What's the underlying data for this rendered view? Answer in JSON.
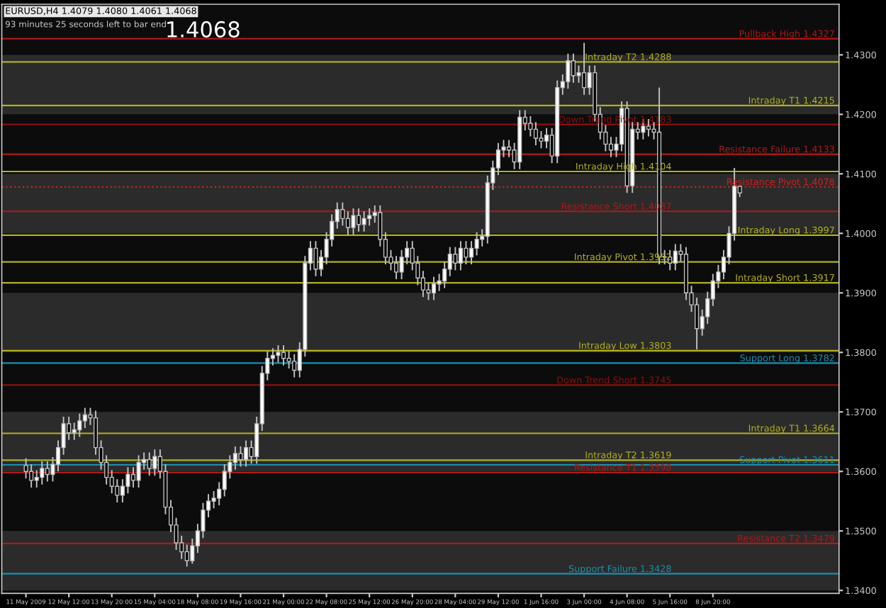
{
  "chart_data": {
    "type": "candlestick",
    "categories": [
      "11 May 2009",
      null,
      null,
      null,
      null,
      null,
      null,
      null,
      "12 May 12:00",
      null,
      null,
      null,
      null,
      null,
      null,
      null,
      "13 May 20:00",
      null,
      null,
      null,
      null,
      null,
      null,
      null,
      "15 May 04:00",
      null,
      null,
      null,
      null,
      null,
      null,
      null,
      "18 May 08:00",
      null,
      null,
      null,
      null,
      null,
      null,
      null,
      "19 May 16:00",
      null,
      null,
      null,
      null,
      null,
      null,
      null,
      "21 May 00:00",
      null,
      null,
      null,
      null,
      null,
      null,
      null,
      "22 May 08:00",
      null,
      null,
      null,
      null,
      null,
      null,
      null,
      "25 May 12:00",
      null,
      null,
      null,
      null,
      null,
      null,
      null,
      "26 May 20:00",
      null,
      null,
      null,
      null,
      null,
      null,
      null,
      "28 May 04:00",
      null,
      null,
      null,
      null,
      null,
      null,
      null,
      "29 May 12:00",
      null,
      null,
      null,
      null,
      null,
      null,
      null,
      "1 Jun 16:00",
      null,
      null,
      null,
      null,
      null,
      null,
      null,
      "3 Jun 00:00",
      null,
      null,
      null,
      null,
      null,
      null,
      null,
      "4 Jun 08:00",
      null,
      null,
      null,
      null,
      null,
      null,
      null,
      "5 Jun 16:00",
      null,
      null,
      null,
      null,
      null,
      null,
      null,
      "8 Jun 20:00",
      null,
      null,
      null,
      null,
      null,
      null,
      null,
      null,
      null,
      null,
      null,
      null,
      null,
      null,
      null,
      null,
      null,
      null,
      null,
      null,
      null,
      null,
      null
    ],
    "ohlc": [
      [
        1.361,
        1.3622,
        1.3588,
        1.36
      ],
      [
        1.36,
        1.3612,
        1.3573,
        1.3585
      ],
      [
        1.3585,
        1.3602,
        1.3573,
        1.359
      ],
      [
        1.359,
        1.3617,
        1.3578,
        1.3605
      ],
      [
        1.3605,
        1.3617,
        1.3583,
        1.3595
      ],
      [
        1.3595,
        1.3624,
        1.3583,
        1.3612
      ],
      [
        1.3612,
        1.3652,
        1.36,
        1.364
      ],
      [
        1.364,
        1.3692,
        1.3628,
        1.368
      ],
      [
        1.368,
        1.3692,
        1.3653,
        1.3665
      ],
      [
        1.3665,
        1.3682,
        1.3653,
        1.367
      ],
      [
        1.367,
        1.3697,
        1.3658,
        1.3685
      ],
      [
        1.3685,
        1.3707,
        1.3673,
        1.3695
      ],
      [
        1.3695,
        1.3707,
        1.3678,
        1.369
      ],
      [
        1.369,
        1.3702,
        1.3628,
        1.364
      ],
      [
        1.364,
        1.3652,
        1.3603,
        1.3615
      ],
      [
        1.3615,
        1.3627,
        1.3578,
        1.359
      ],
      [
        1.359,
        1.3602,
        1.3563,
        1.3575
      ],
      [
        1.3575,
        1.3587,
        1.3548,
        1.356
      ],
      [
        1.356,
        1.3587,
        1.3548,
        1.3575
      ],
      [
        1.3575,
        1.3607,
        1.3563,
        1.3595
      ],
      [
        1.3595,
        1.3607,
        1.3573,
        1.3585
      ],
      [
        1.3585,
        1.3627,
        1.3573,
        1.3615
      ],
      [
        1.3615,
        1.3632,
        1.3603,
        1.362
      ],
      [
        1.362,
        1.3632,
        1.3593,
        1.3605
      ],
      [
        1.3605,
        1.3637,
        1.3593,
        1.3625
      ],
      [
        1.3625,
        1.3637,
        1.3588,
        1.36
      ],
      [
        1.36,
        1.3612,
        1.3528,
        1.354
      ],
      [
        1.354,
        1.3552,
        1.3498,
        1.351
      ],
      [
        1.351,
        1.3522,
        1.3468,
        1.348
      ],
      [
        1.348,
        1.3492,
        1.3453,
        1.3465
      ],
      [
        1.3465,
        1.3477,
        1.344,
        1.345
      ],
      [
        1.345,
        1.3487,
        1.3445,
        1.3475
      ],
      [
        1.3475,
        1.3512,
        1.3463,
        1.35
      ],
      [
        1.35,
        1.3547,
        1.3488,
        1.3535
      ],
      [
        1.3535,
        1.3562,
        1.3523,
        1.355
      ],
      [
        1.355,
        1.3567,
        1.3538,
        1.3555
      ],
      [
        1.3555,
        1.3582,
        1.3543,
        1.357
      ],
      [
        1.357,
        1.3612,
        1.3558,
        1.36
      ],
      [
        1.36,
        1.3627,
        1.3588,
        1.3615
      ],
      [
        1.3615,
        1.3642,
        1.3603,
        1.363
      ],
      [
        1.363,
        1.3642,
        1.3608,
        1.362
      ],
      [
        1.362,
        1.3652,
        1.3608,
        1.364
      ],
      [
        1.364,
        1.3652,
        1.3613,
        1.3625
      ],
      [
        1.3625,
        1.3692,
        1.3613,
        1.368
      ],
      [
        1.368,
        1.3777,
        1.3668,
        1.3765
      ],
      [
        1.3765,
        1.3802,
        1.3753,
        1.379
      ],
      [
        1.379,
        1.3807,
        1.3778,
        1.3795
      ],
      [
        1.3795,
        1.3812,
        1.3783,
        1.38
      ],
      [
        1.38,
        1.3812,
        1.3778,
        1.379
      ],
      [
        1.379,
        1.3802,
        1.3773,
        1.3785
      ],
      [
        1.3785,
        1.3797,
        1.3758,
        1.377
      ],
      [
        1.377,
        1.3817,
        1.3758,
        1.3805
      ],
      [
        1.3805,
        1.3962,
        1.3793,
        1.395
      ],
      [
        1.395,
        1.3987,
        1.3938,
        1.3975
      ],
      [
        1.3975,
        1.3987,
        1.3928,
        1.394
      ],
      [
        1.394,
        1.3972,
        1.3928,
        1.396
      ],
      [
        1.396,
        1.4002,
        1.3948,
        1.399
      ],
      [
        1.399,
        1.4032,
        1.3978,
        1.402
      ],
      [
        1.402,
        1.4052,
        1.4008,
        1.404
      ],
      [
        1.404,
        1.4052,
        1.4013,
        1.4025
      ],
      [
        1.4025,
        1.4037,
        1.3998,
        1.401
      ],
      [
        1.401,
        1.4042,
        1.3998,
        1.403
      ],
      [
        1.403,
        1.4042,
        1.4003,
        1.4015
      ],
      [
        1.4015,
        1.4037,
        1.4003,
        1.4025
      ],
      [
        1.4025,
        1.4042,
        1.4013,
        1.403
      ],
      [
        1.403,
        1.4047,
        1.4018,
        1.4035
      ],
      [
        1.4035,
        1.4047,
        1.3978,
        1.399
      ],
      [
        1.399,
        1.4002,
        1.3948,
        1.396
      ],
      [
        1.396,
        1.3972,
        1.3938,
        1.395
      ],
      [
        1.395,
        1.3962,
        1.3923,
        1.3935
      ],
      [
        1.3935,
        1.3972,
        1.3923,
        1.396
      ],
      [
        1.396,
        1.3987,
        1.3948,
        1.3975
      ],
      [
        1.3975,
        1.3987,
        1.3938,
        1.395
      ],
      [
        1.395,
        1.3962,
        1.3913,
        1.3925
      ],
      [
        1.3925,
        1.3937,
        1.3893,
        1.3905
      ],
      [
        1.3905,
        1.3917,
        1.3888,
        1.39
      ],
      [
        1.39,
        1.3927,
        1.3888,
        1.3915
      ],
      [
        1.3915,
        1.3932,
        1.3903,
        1.392
      ],
      [
        1.392,
        1.3952,
        1.3908,
        1.394
      ],
      [
        1.394,
        1.3977,
        1.3928,
        1.3965
      ],
      [
        1.3965,
        1.3977,
        1.3938,
        1.395
      ],
      [
        1.395,
        1.3987,
        1.3938,
        1.3975
      ],
      [
        1.3975,
        1.3987,
        1.3948,
        1.396
      ],
      [
        1.396,
        1.3987,
        1.3948,
        1.3975
      ],
      [
        1.3975,
        1.4002,
        1.3963,
        1.399
      ],
      [
        1.399,
        1.4007,
        1.3978,
        1.3995
      ],
      [
        1.3995,
        1.4097,
        1.3983,
        1.4085
      ],
      [
        1.4085,
        1.4122,
        1.4073,
        1.411
      ],
      [
        1.411,
        1.4152,
        1.4098,
        1.414
      ],
      [
        1.414,
        1.4157,
        1.4128,
        1.4145
      ],
      [
        1.4145,
        1.4157,
        1.4128,
        1.414
      ],
      [
        1.414,
        1.4152,
        1.4108,
        1.412
      ],
      [
        1.412,
        1.4207,
        1.4108,
        1.4195
      ],
      [
        1.4195,
        1.4207,
        1.4173,
        1.4185
      ],
      [
        1.4185,
        1.4197,
        1.4163,
        1.4175
      ],
      [
        1.4175,
        1.4187,
        1.4148,
        1.416
      ],
      [
        1.416,
        1.4172,
        1.4143,
        1.4155
      ],
      [
        1.4155,
        1.4177,
        1.4143,
        1.4165
      ],
      [
        1.4165,
        1.4177,
        1.4118,
        1.413
      ],
      [
        1.413,
        1.4257,
        1.4118,
        1.4245
      ],
      [
        1.4245,
        1.4267,
        1.4233,
        1.4255
      ],
      [
        1.4255,
        1.4302,
        1.4243,
        1.429
      ],
      [
        1.429,
        1.4302,
        1.4253,
        1.4265
      ],
      [
        1.4265,
        1.4282,
        1.4253,
        1.427
      ],
      [
        1.427,
        1.432,
        1.4233,
        1.4245
      ],
      [
        1.4245,
        1.4282,
        1.4233,
        1.427
      ],
      [
        1.427,
        1.4282,
        1.4188,
        1.42
      ],
      [
        1.42,
        1.4212,
        1.4158,
        1.417
      ],
      [
        1.417,
        1.4182,
        1.4138,
        1.415
      ],
      [
        1.415,
        1.4162,
        1.4128,
        1.414
      ],
      [
        1.414,
        1.4162,
        1.4128,
        1.415
      ],
      [
        1.415,
        1.4222,
        1.4138,
        1.421
      ],
      [
        1.421,
        1.4222,
        1.4068,
        1.408
      ],
      [
        1.408,
        1.4187,
        1.4068,
        1.4175
      ],
      [
        1.4175,
        1.4187,
        1.4158,
        1.417
      ],
      [
        1.417,
        1.4192,
        1.4158,
        1.418
      ],
      [
        1.418,
        1.4192,
        1.4163,
        1.4175
      ],
      [
        1.4175,
        1.4187,
        1.4158,
        1.417
      ],
      [
        1.417,
        1.4245,
        1.3948,
        1.396
      ],
      [
        1.396,
        1.3972,
        1.3948,
        1.396
      ],
      [
        1.396,
        1.3972,
        1.3938,
        1.395
      ],
      [
        1.395,
        1.3982,
        1.3938,
        1.397
      ],
      [
        1.397,
        1.3982,
        1.3953,
        1.3965
      ],
      [
        1.3965,
        1.3977,
        1.3888,
        1.39
      ],
      [
        1.39,
        1.3912,
        1.3868,
        1.388
      ],
      [
        1.388,
        1.3892,
        1.3805,
        1.384
      ],
      [
        1.384,
        1.3872,
        1.3828,
        1.386
      ],
      [
        1.386,
        1.3902,
        1.3848,
        1.389
      ],
      [
        1.389,
        1.3932,
        1.3878,
        1.392
      ],
      [
        1.392,
        1.3947,
        1.3908,
        1.3935
      ],
      [
        1.3935,
        1.3972,
        1.3923,
        1.396
      ],
      [
        1.396,
        1.4012,
        1.3948,
        1.4
      ],
      [
        1.4,
        1.411,
        1.3988,
        1.4079
      ],
      [
        1.4079,
        1.408,
        1.4061,
        1.4068
      ],
      null,
      null,
      null,
      null,
      null,
      null,
      null,
      null,
      null,
      null,
      null,
      null,
      null,
      null,
      null,
      null,
      null,
      null
    ],
    "color": "#c0c0c0",
    "ylim": [
      1.3395,
      1.4385
    ],
    "yticks": [
      {
        "value": 1.34,
        "label": "1.3400"
      },
      {
        "value": 1.35,
        "label": "1.3500"
      },
      {
        "value": 1.36,
        "label": "1.3600"
      },
      {
        "value": 1.37,
        "label": "1.3700"
      },
      {
        "value": 1.38,
        "label": "1.3800"
      },
      {
        "value": 1.39,
        "label": "1.3900"
      },
      {
        "value": 1.4,
        "label": "1.4000"
      },
      {
        "value": 1.41,
        "label": "1.4100"
      },
      {
        "value": 1.42,
        "label": "1.4200"
      },
      {
        "value": 1.43,
        "label": "1.4300"
      }
    ],
    "bands": [
      {
        "axis": "y",
        "from": 1.42,
        "to": 1.43,
        "color": "#2b2b2b"
      },
      {
        "axis": "y",
        "from": 1.4,
        "to": 1.41,
        "color": "#2b2b2b"
      },
      {
        "axis": "y",
        "from": 1.38,
        "to": 1.39,
        "color": "#2b2b2b"
      },
      {
        "axis": "y",
        "from": 1.36,
        "to": 1.37,
        "color": "#2b2b2b"
      },
      {
        "axis": "y",
        "from": 1.34,
        "to": 1.35,
        "color": "#2b2b2b"
      }
    ],
    "ref_lines": [
      {
        "axis": "y",
        "value": 1.4327,
        "label": "Pullback High 1.4327",
        "color": "#b01818"
      },
      {
        "axis": "y",
        "value": 1.4288,
        "label": "Intraday T2 1.4288",
        "color": "#b0b020"
      },
      {
        "axis": "y",
        "value": 1.4215,
        "label": "Intraday T1 1.4215",
        "color": "#b0b020"
      },
      {
        "axis": "y",
        "value": 1.4183,
        "label": "Down Trend Pivot 1.4183",
        "color": "#8a1010"
      },
      {
        "axis": "y",
        "value": 1.4133,
        "label": "Resistance Failure 1.4133",
        "color": "#b01818"
      },
      {
        "axis": "y",
        "value": 1.4104,
        "label": "Intraday High 1.4104",
        "color": "#b0b020"
      },
      {
        "axis": "y",
        "value": 1.4078,
        "label": "Resistance Pivot 1.4078",
        "color": "#d02020",
        "line_style": "dotted"
      },
      {
        "axis": "y",
        "value": 1.4037,
        "label": "Resistance Short 1.4037",
        "color": "#b01818"
      },
      {
        "axis": "y",
        "value": 1.3997,
        "label": "Intraday Long 1.3997",
        "color": "#b0b020"
      },
      {
        "axis": "y",
        "value": 1.3952,
        "label": "Intraday Pivot 1.3952",
        "color": "#b0b020"
      },
      {
        "axis": "y",
        "value": 1.3917,
        "label": "Intraday Short 1.3917",
        "color": "#b0b020"
      },
      {
        "axis": "y",
        "value": 1.3803,
        "label": "Intraday Low 1.3803",
        "color": "#b0b020"
      },
      {
        "axis": "y",
        "value": 1.3782,
        "label": "Support Long 1.3782",
        "color": "#1a8fb0"
      },
      {
        "axis": "y",
        "value": 1.3745,
        "label": "Down Trend Short 1.3745",
        "color": "#8a1010"
      },
      {
        "axis": "y",
        "value": 1.3664,
        "label": "Intraday T1 1.3664",
        "color": "#b0b020"
      },
      {
        "axis": "y",
        "value": 1.3619,
        "label": "Intraday T2 1.3619",
        "color": "#b0b020"
      },
      {
        "axis": "y",
        "value": 1.3611,
        "label": "Support Pivot 1.3611",
        "color": "#1a8fb0"
      },
      {
        "axis": "y",
        "value": 1.3598,
        "label": "Resistance T1 1.3598",
        "color": "#b01818"
      },
      {
        "axis": "y",
        "value": 1.3479,
        "label": "Resistance T2 1.3479",
        "color": "#b01818"
      },
      {
        "axis": "y",
        "value": 1.3428,
        "label": "Support Failure 1.3428",
        "color": "#1a8fb0"
      }
    ],
    "annotations": [
      "EURUSD,H4 1.4079 1.4080 1.4061 1.4068",
      "93 minutes 25 seconds left to bar end",
      "1.4068"
    ]
  }
}
